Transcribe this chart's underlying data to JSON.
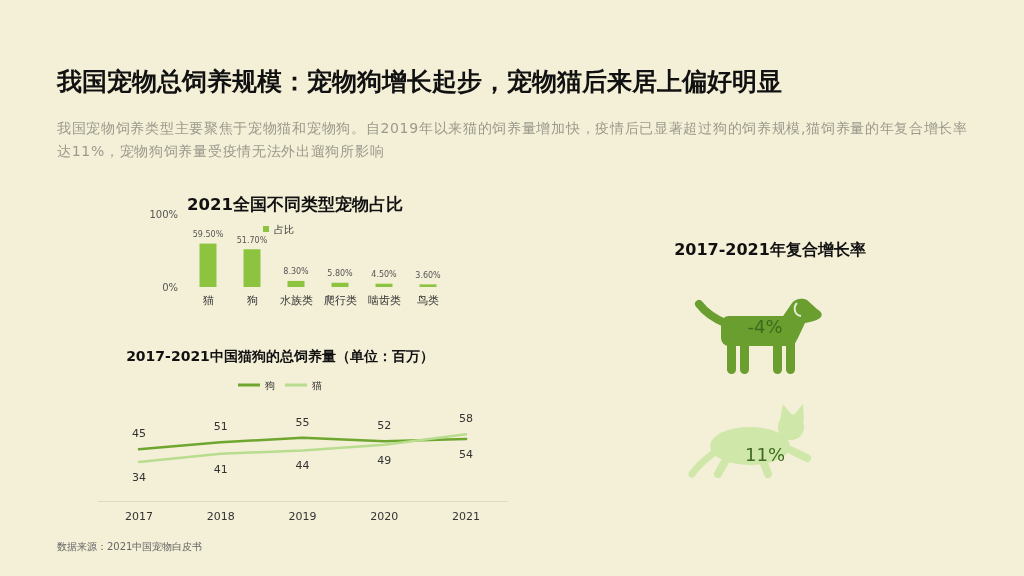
{
  "chart_data": [
    {
      "type": "other",
      "title": "我国宠物总饲养规模：宠物狗增长起步，宠物猫后来居上偏好明显",
      "subtitle": "我国宠物饲养类型主要聚焦于宠物猫和宠物狗。自2019年以来猫的饲养量增加快，疫情后已显著超过狗的饲养规模,猫饲养量的年复合增长率达11%，宠物狗饲养量受疫情无法外出遛狗所影响"
    },
    {
      "type": "bar",
      "title": "2021全国不同类型宠物占比",
      "categories": [
        "猫",
        "狗",
        "水族类",
        "爬行类",
        "啮齿类",
        "鸟类"
      ],
      "series": [
        {
          "name": "占比",
          "color": "#8cc43f",
          "values": [
            59.5,
            51.7,
            8.3,
            5.8,
            4.5,
            3.6
          ],
          "value_labels": [
            "59.50%",
            "51.70%",
            "8.30%",
            "5.80%",
            "4.50%",
            "3.60%"
          ]
        }
      ],
      "ylim": [
        0,
        100
      ],
      "yticks": [
        {
          "value": 0,
          "label": "0%"
        },
        {
          "value": 100,
          "label": "100%"
        }
      ],
      "legend": "top"
    },
    {
      "type": "line",
      "title": "2017-2021中国猫狗的总饲养量（单位：百万）",
      "categories": [
        "2017",
        "2018",
        "2019",
        "2020",
        "2021"
      ],
      "series": [
        {
          "name": "狗",
          "color": "#6ea62f",
          "values": [
            45,
            51,
            55,
            52,
            54
          ]
        },
        {
          "name": "猫",
          "color": "#b8dd8e",
          "values": [
            34,
            41,
            44,
            49,
            58
          ]
        }
      ],
      "data_labels": true,
      "legend": "top",
      "marker": "none",
      "annotations": [
        "数据来源：2021中国宠物白皮书"
      ]
    },
    {
      "type": "other",
      "title": "2017-2021年复合增长率",
      "annotations": [
        "-4%",
        "11%"
      ]
    }
  ]
}
